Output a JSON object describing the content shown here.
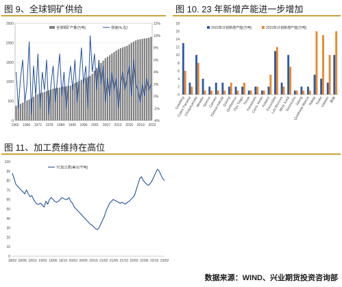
{
  "titles": {
    "fig9": "图 9、全球铜矿供给",
    "fig10": "图 10. 23 年新增产能进一步增加",
    "fig11": "图 11、加工费维持在高位"
  },
  "source": "数据来源：WIND、兴业期货投资咨询部",
  "colors": {
    "bar": "#7f7f7f",
    "line1": "#1f4e9c",
    "blue": "#2e5aa6",
    "orange": "#e8892b",
    "line3": "#1f4e9c",
    "accent": "#c9a13a"
  },
  "chart_data": [
    {
      "type": "bar",
      "id": "fig9",
      "legend": [
        "全球铜矿产量(万吨)",
        "增速(%,右)"
      ],
      "x_ticks": [
        "1960",
        "1966",
        "1972",
        "1978",
        "1984",
        "1990",
        "1996",
        "2001",
        "2007",
        "2013",
        "2016",
        "2019",
        "2022"
      ],
      "ylim_left": [
        0,
        2500
      ],
      "ylim_right": [
        -4,
        12
      ],
      "y_ticks_left": [
        0,
        500,
        1000,
        1500,
        2000,
        2500
      ],
      "y_ticks_right": [
        "-4%",
        "-2%",
        "0%",
        "2%",
        "4%",
        "6%",
        "8%",
        "10%",
        "12%"
      ],
      "bars": [
        380,
        400,
        430,
        460,
        490,
        520,
        540,
        570,
        610,
        650,
        680,
        700,
        720,
        740,
        760,
        780,
        800,
        820,
        830,
        840,
        850,
        860,
        870,
        880,
        890,
        900,
        930,
        960,
        990,
        1020,
        1050,
        1080,
        1100,
        1120,
        1150,
        1200,
        1280,
        1350,
        1420,
        1480,
        1540,
        1600,
        1640,
        1680,
        1720,
        1760,
        1800,
        1830,
        1860,
        1880,
        1900,
        1920,
        1960,
        2000,
        2030,
        2060,
        2080,
        2090,
        2100,
        2110,
        2120,
        2130,
        2150
      ],
      "growth": [
        4,
        -2,
        3,
        6,
        -1,
        2,
        9,
        -3,
        5,
        0,
        7,
        -2,
        4,
        1,
        6,
        -3,
        2,
        5,
        -1,
        3,
        7,
        0,
        4,
        -2,
        2,
        5,
        1,
        6,
        -1,
        3,
        8,
        2,
        5,
        -2,
        10,
        4,
        7,
        1,
        6,
        2,
        5,
        -1,
        3,
        0,
        4,
        1,
        3,
        -2,
        2,
        4,
        1,
        3,
        5,
        0,
        6,
        2,
        1,
        -1,
        2,
        0,
        3,
        1,
        2
      ]
    },
    {
      "type": "bar",
      "id": "fig10",
      "legend": [
        "2022年计划新增产能(万吨)",
        "2023年计划新增产能(万吨)"
      ],
      "ylim": [
        0,
        18
      ],
      "y_ticks": [
        0,
        2,
        4,
        6,
        8,
        10,
        12,
        14,
        16,
        18
      ],
      "categories": [
        "Grasberg",
        "Cobre Panama",
        "Chuquicamata",
        "Mirador",
        "Spence",
        "Carmen",
        "Kamoa-Kakula",
        "Qulong",
        "Quellaveco",
        "Oyu Tolgoi",
        "Timok",
        "Kansanshi",
        "Cerro Verde",
        "Kolwezi",
        "Escondida",
        "Los Bronces",
        "Mina Justa",
        "Toromocho",
        "Julong",
        "Quebrada Blanca",
        "Rakita",
        "Tenke",
        "Udokan",
        "其他"
      ],
      "series": [
        {
          "name": "2022年计划新增产能(万吨)",
          "values": [
            13,
            3,
            10,
            4,
            2,
            3,
            3,
            2,
            2,
            2,
            1,
            2,
            1,
            2,
            11,
            3,
            10,
            1,
            2,
            2,
            5,
            4,
            3,
            10
          ]
        },
        {
          "name": "2023年计划新增产能(万吨)",
          "values": [
            6,
            2,
            8,
            1,
            1,
            1,
            1,
            3,
            1,
            3,
            1,
            2,
            1,
            5,
            12,
            2,
            7,
            1,
            1,
            1,
            16,
            15,
            10,
            16
          ]
        }
      ]
    },
    {
      "type": "line",
      "id": "fig11",
      "legend": [
        "TC加工费(美元/千吨)"
      ],
      "ylim": [
        0,
        100
      ],
      "y_ticks": [
        0,
        10,
        20,
        30,
        40,
        50,
        60,
        70,
        80,
        90,
        100
      ],
      "x_ticks": [
        "18/02",
        "18/06",
        "18/10",
        "19/02",
        "19/06",
        "19/10",
        "20/02",
        "20/06",
        "20/10",
        "21/02",
        "21/06",
        "21/10",
        "22/02",
        "22/06",
        "22/10",
        "23/02"
      ],
      "values": [
        88,
        82,
        76,
        74,
        72,
        70,
        68,
        66,
        70,
        66,
        63,
        64,
        60,
        57,
        55,
        55,
        56,
        54,
        52,
        58,
        55,
        60,
        62,
        60,
        58,
        57,
        58,
        60,
        62,
        61,
        60,
        60,
        62,
        58,
        56,
        52,
        50,
        48,
        46,
        44,
        42,
        40,
        38,
        36,
        34,
        33,
        31,
        29,
        28,
        30,
        34,
        38,
        42,
        48,
        52,
        56,
        58,
        60,
        59,
        58,
        57,
        56,
        57,
        56,
        55,
        57,
        58,
        60,
        62,
        64,
        70,
        76,
        82,
        84,
        80,
        78,
        76,
        75,
        77,
        80,
        84,
        88,
        92,
        90,
        86,
        82,
        80
      ]
    }
  ]
}
